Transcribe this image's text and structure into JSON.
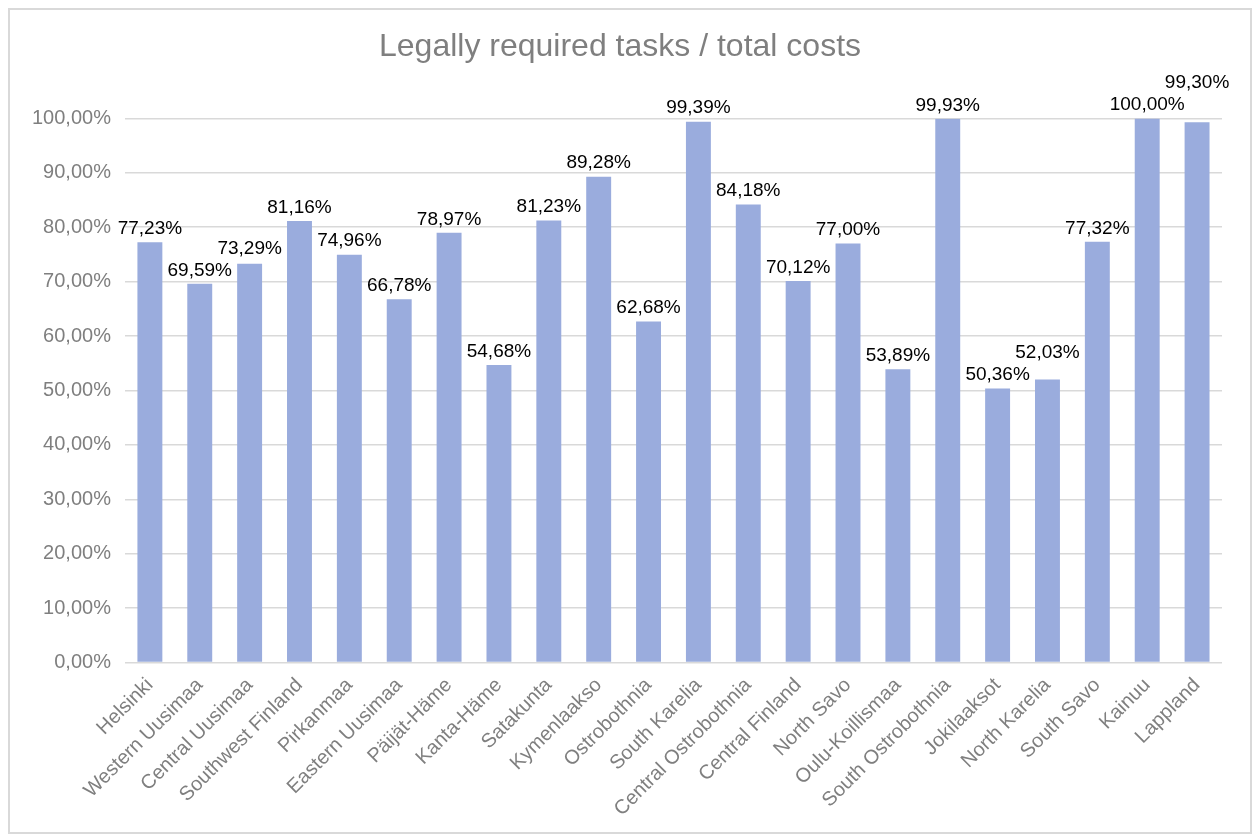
{
  "chart_data": {
    "type": "bar",
    "title": "Legally required tasks / total costs",
    "categories": [
      "Helsinki",
      "Western Uusimaa",
      "Central Uusimaa",
      "Southwest Finland",
      "Pirkanmaa",
      "Eastern Uusimaa",
      "Päijät-Häme",
      "Kanta-Häme",
      "Satakunta",
      "Kymenlaakso",
      "Ostrobothnia",
      "South Karelia",
      "Central Ostrobothnia",
      "Central Finland",
      "North Savo",
      "Oulu-Koillismaa",
      "South Ostrobothnia",
      "Jokilaaksot",
      "North Karelia",
      "South Savo",
      "Kainuu",
      "Lappland"
    ],
    "values": [
      77.23,
      69.59,
      73.29,
      81.16,
      74.96,
      66.78,
      78.97,
      54.68,
      81.23,
      89.28,
      62.68,
      99.39,
      84.18,
      70.12,
      77.0,
      53.89,
      99.93,
      50.36,
      52.03,
      77.32,
      100.0,
      99.3
    ],
    "value_labels": [
      "77,23%",
      "69,59%",
      "73,29%",
      "81,16%",
      "74,96%",
      "66,78%",
      "78,97%",
      "54,68%",
      "81,23%",
      "89,28%",
      "62,68%",
      "99,39%",
      "84,18%",
      "70,12%",
      "77,00%",
      "53,89%",
      "99,93%",
      "50,36%",
      "52,03%",
      "77,32%",
      "100,00%",
      "99,30%"
    ],
    "color": "#9aacdd",
    "ylim": [
      0,
      100
    ],
    "yticks": [
      {
        "value": 0,
        "label": "0,00%"
      },
      {
        "value": 10,
        "label": "10,00%"
      },
      {
        "value": 20,
        "label": "20,00%"
      },
      {
        "value": 30,
        "label": "30,00%"
      },
      {
        "value": 40,
        "label": "40,00%"
      },
      {
        "value": 50,
        "label": "50,00%"
      },
      {
        "value": 60,
        "label": "60,00%"
      },
      {
        "value": 70,
        "label": "70,00%"
      },
      {
        "value": 80,
        "label": "80,00%"
      },
      {
        "value": 90,
        "label": "90,00%"
      },
      {
        "value": 100,
        "label": "100,00%"
      }
    ],
    "grid": "y"
  }
}
